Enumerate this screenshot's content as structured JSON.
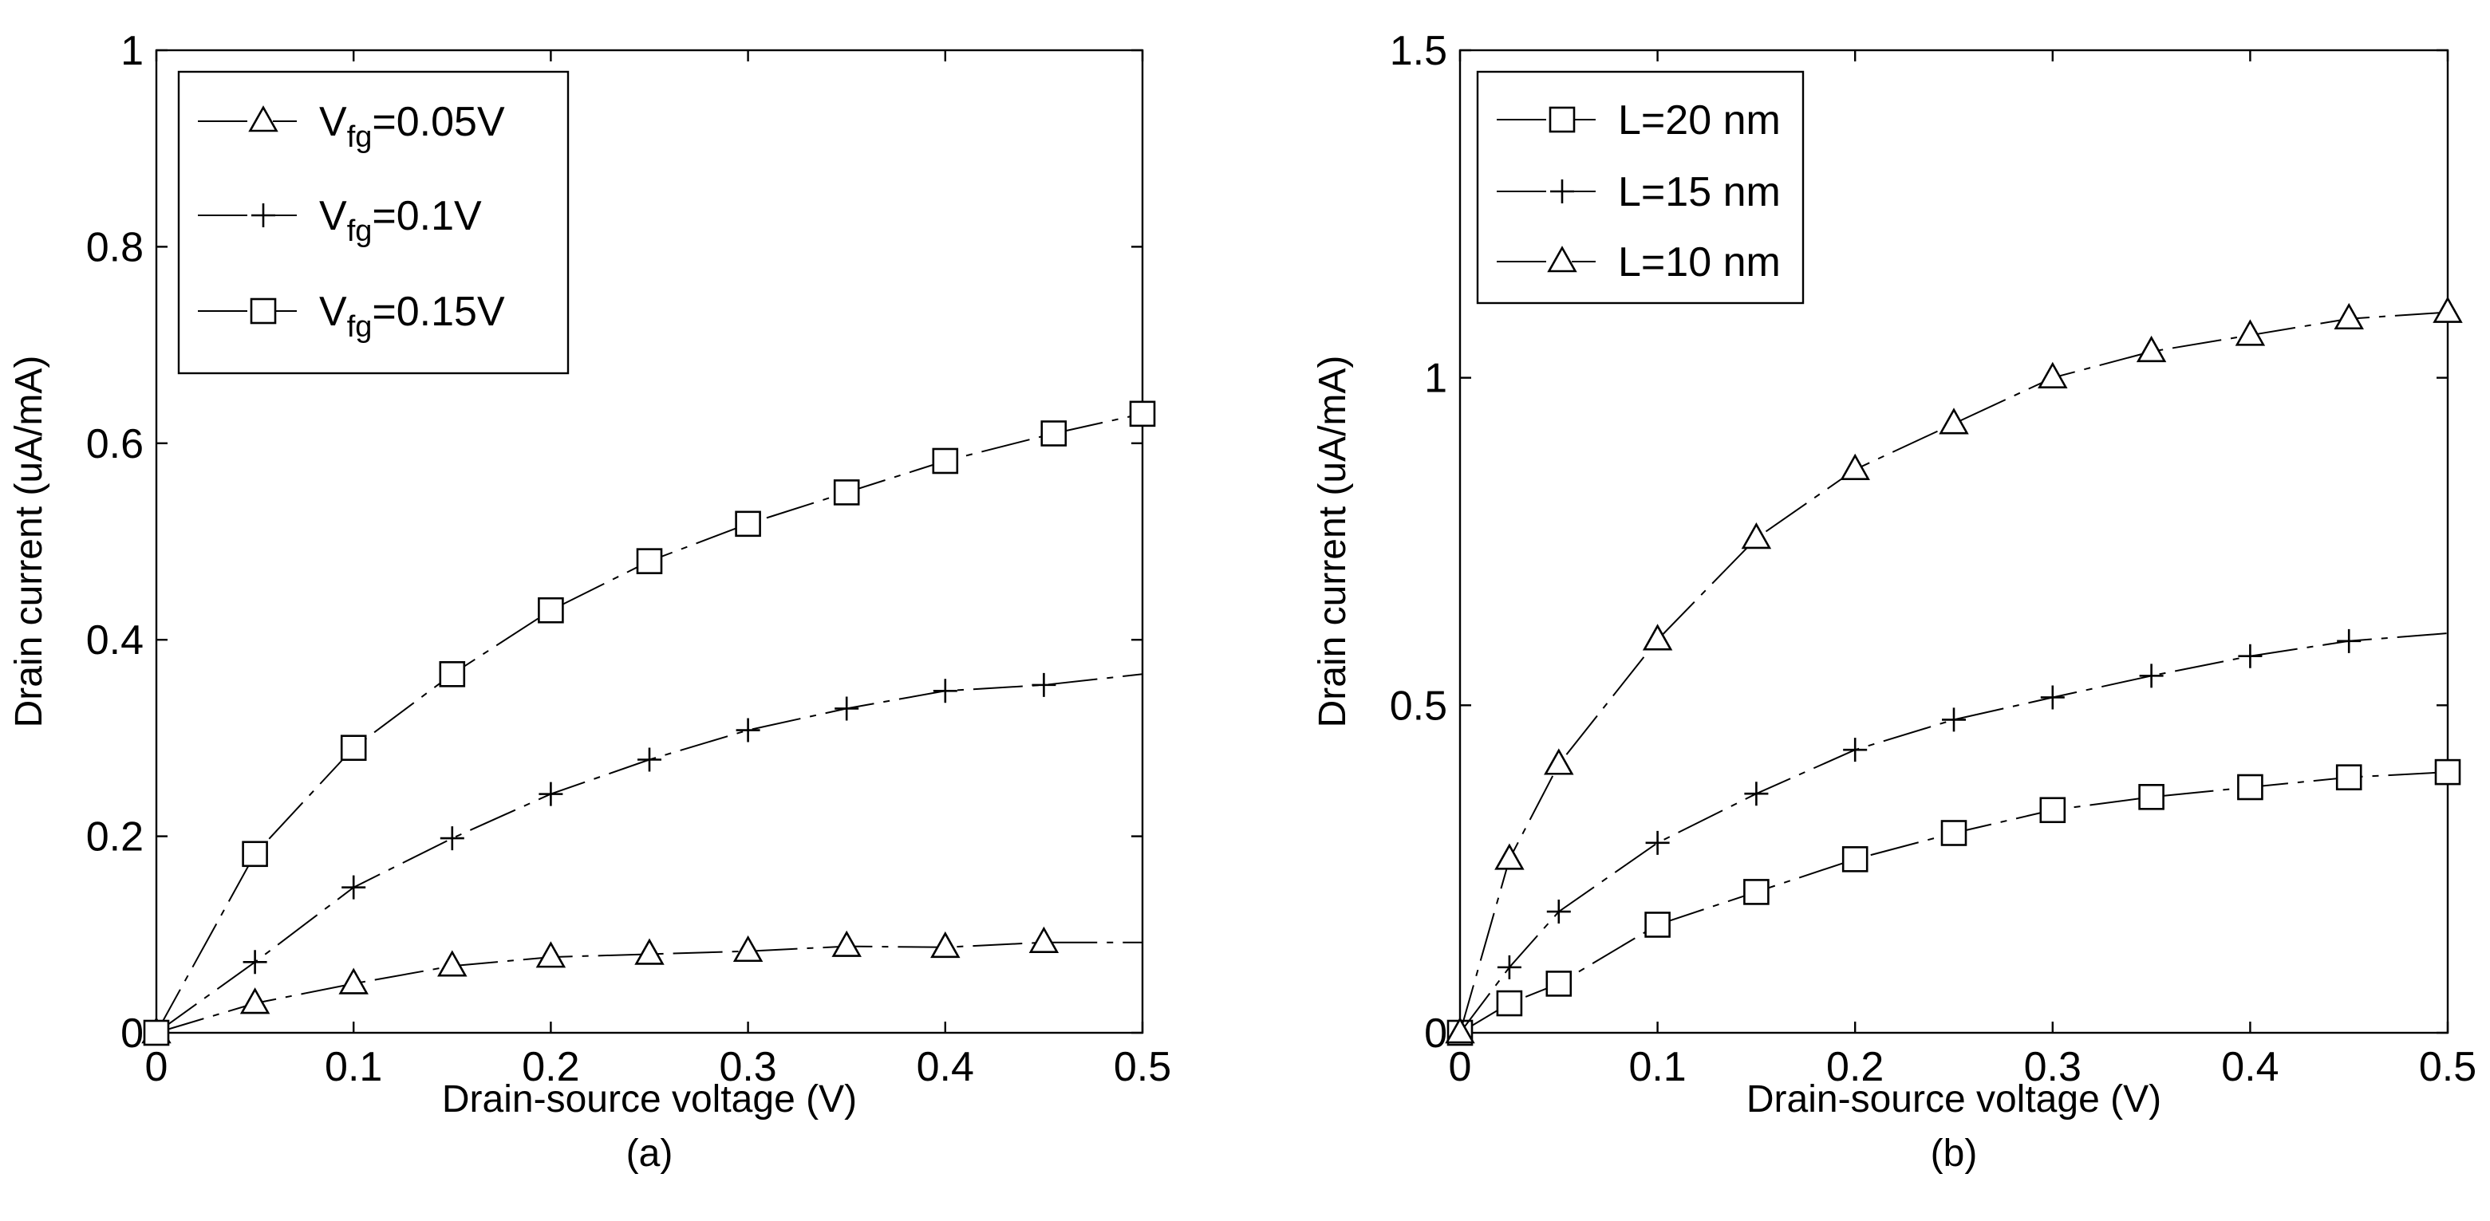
{
  "chart_data": [
    {
      "type": "line",
      "panel_label": "(a)",
      "xlabel": "Drain-source voltage (V)",
      "ylabel": "Drain current (uA/mA)",
      "xlim": [
        0,
        0.5
      ],
      "ylim": [
        0,
        1
      ],
      "xticks": [
        0,
        0.1,
        0.2,
        0.3,
        0.4,
        0.5
      ],
      "yticks": [
        0,
        0.2,
        0.4,
        0.6,
        0.8,
        1
      ],
      "xtick_labels": [
        "0",
        "0.1",
        "0.2",
        "0.3",
        "0.4",
        "0.5"
      ],
      "ytick_labels": [
        "0",
        "0.2",
        "0.4",
        "0.6",
        "0.8",
        "1"
      ],
      "legend_position": "top-left",
      "series": [
        {
          "name": "Vfg=0.05V",
          "legend_main": "V",
          "legend_sub": "fg",
          "legend_rest": "=0.05V",
          "marker": "triangle",
          "x": [
            0,
            0.05,
            0.1,
            0.15,
            0.2,
            0.25,
            0.3,
            0.35,
            0.4,
            0.45,
            0.5
          ],
          "y": [
            0,
            0.03,
            0.05,
            0.068,
            0.077,
            0.08,
            0.083,
            0.088,
            0.087,
            0.092,
            0.092
          ],
          "marker_x": [
            0,
            0.05,
            0.1,
            0.15,
            0.2,
            0.25,
            0.3,
            0.35,
            0.4,
            0.45
          ]
        },
        {
          "name": "Vfg=0.1V",
          "legend_main": "V",
          "legend_sub": "fg",
          "legend_rest": "=0.1V",
          "marker": "plus",
          "x": [
            0,
            0.05,
            0.1,
            0.15,
            0.2,
            0.25,
            0.3,
            0.35,
            0.4,
            0.45,
            0.5
          ],
          "y": [
            0,
            0.072,
            0.148,
            0.198,
            0.243,
            0.278,
            0.308,
            0.33,
            0.348,
            0.354,
            0.365
          ],
          "marker_x": [
            0.05,
            0.1,
            0.15,
            0.2,
            0.25,
            0.3,
            0.35,
            0.4,
            0.45
          ]
        },
        {
          "name": "Vfg=0.15V",
          "legend_main": "V",
          "legend_sub": "fg",
          "legend_rest": "=0.15V",
          "marker": "square",
          "x": [
            0,
            0.05,
            0.1,
            0.15,
            0.2,
            0.25,
            0.3,
            0.35,
            0.4,
            0.455,
            0.5
          ],
          "y": [
            0,
            0.182,
            0.29,
            0.365,
            0.43,
            0.48,
            0.518,
            0.55,
            0.582,
            0.61,
            0.63
          ],
          "marker_x": [
            0,
            0.05,
            0.1,
            0.15,
            0.2,
            0.25,
            0.3,
            0.35,
            0.4,
            0.455,
            0.5
          ]
        }
      ]
    },
    {
      "type": "line",
      "panel_label": "(b)",
      "xlabel": "Drain-source voltage (V)",
      "ylabel": "Drain current (uA/mA)",
      "xlim": [
        0,
        0.5
      ],
      "ylim": [
        0,
        1.5
      ],
      "xticks": [
        0,
        0.1,
        0.2,
        0.3,
        0.4,
        0.5
      ],
      "yticks": [
        0,
        0.5,
        1,
        1.5
      ],
      "xtick_labels": [
        "0",
        "0.1",
        "0.2",
        "0.3",
        "0.4",
        "0.5"
      ],
      "ytick_labels": [
        "0",
        "0.5",
        "1",
        "1.5"
      ],
      "legend_position": "top-left",
      "series": [
        {
          "name": "L=20 nm",
          "legend_main": "L=20 nm",
          "legend_sub": "",
          "legend_rest": "",
          "marker": "square",
          "x": [
            0,
            0.025,
            0.05,
            0.1,
            0.15,
            0.2,
            0.25,
            0.3,
            0.35,
            0.4,
            0.45,
            0.5
          ],
          "y": [
            0,
            0.045,
            0.075,
            0.165,
            0.215,
            0.265,
            0.305,
            0.34,
            0.36,
            0.375,
            0.39,
            0.398
          ],
          "marker_x": [
            0,
            0.025,
            0.05,
            0.1,
            0.15,
            0.2,
            0.25,
            0.3,
            0.35,
            0.4,
            0.45,
            0.5
          ]
        },
        {
          "name": "L=15 nm",
          "legend_main": "L=15 nm",
          "legend_sub": "",
          "legend_rest": "",
          "marker": "plus",
          "x": [
            0,
            0.025,
            0.05,
            0.1,
            0.15,
            0.2,
            0.25,
            0.3,
            0.35,
            0.4,
            0.45,
            0.5
          ],
          "y": [
            0,
            0.1,
            0.185,
            0.29,
            0.365,
            0.432,
            0.478,
            0.512,
            0.545,
            0.575,
            0.598,
            0.61
          ],
          "marker_x": [
            0.025,
            0.05,
            0.1,
            0.15,
            0.2,
            0.25,
            0.3,
            0.35,
            0.4,
            0.45
          ]
        },
        {
          "name": "L=10 nm",
          "legend_main": "L=10 nm",
          "legend_sub": "",
          "legend_rest": "",
          "marker": "triangle",
          "x": [
            0,
            0.025,
            0.05,
            0.1,
            0.15,
            0.2,
            0.25,
            0.3,
            0.35,
            0.4,
            0.45,
            0.5
          ],
          "y": [
            0,
            0.265,
            0.41,
            0.6,
            0.755,
            0.86,
            0.93,
            1.0,
            1.04,
            1.065,
            1.09,
            1.1
          ],
          "marker_x": [
            0,
            0.025,
            0.05,
            0.1,
            0.15,
            0.2,
            0.25,
            0.3,
            0.35,
            0.4,
            0.45,
            0.5
          ]
        }
      ]
    }
  ]
}
